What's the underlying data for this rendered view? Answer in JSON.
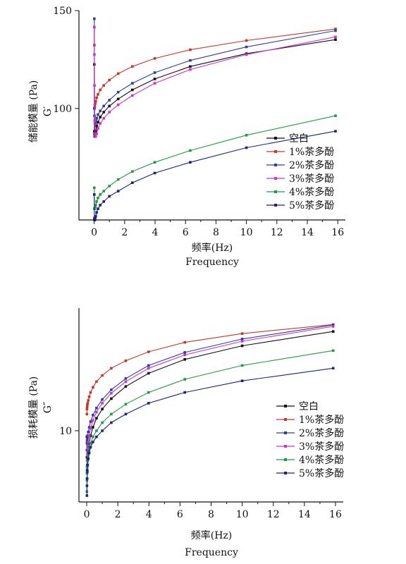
{
  "chart_data": [
    {
      "type": "line",
      "ylabel": "储能模量 (Pa)",
      "ysymbol": "G′",
      "xlabel_cn": "频率(Hz)",
      "xlabel_en": "Frequency",
      "xlim": [
        -1,
        16.5
      ],
      "ylim": [
        63,
        150
      ],
      "yscale": "log",
      "xticks": [
        0,
        2,
        4,
        6,
        8,
        10,
        12,
        14,
        16
      ],
      "yticks": [
        100,
        150
      ],
      "x": [
        0.01,
        0.016,
        0.025,
        0.04,
        0.063,
        0.1,
        0.16,
        0.25,
        0.4,
        0.63,
        1.0,
        1.58,
        2.51,
        3.98,
        6.31,
        10.0,
        15.85
      ],
      "series": [
        {
          "name": "空白",
          "color": "#111111",
          "values": [
            120,
            91,
            90,
            89,
            90,
            91,
            93,
            94.5,
            96.5,
            98.5,
            101,
            104,
            108,
            113,
            119,
            125.5,
            133
          ]
        },
        {
          "name": "1%茶多酚",
          "color": "#c0392b",
          "values": [
            140,
            130,
            100,
            101,
            102,
            103,
            104.5,
            106,
            108,
            110,
            112.5,
            115.5,
            119,
            123,
            127.5,
            132.5,
            139
          ]
        },
        {
          "name": "2%茶多酚",
          "color": "#2c3e9e",
          "values": [
            145,
            100,
            97,
            95,
            94,
            95,
            96,
            97.5,
            99,
            101,
            103.5,
            107,
            111,
            116,
            122,
            129,
            138
          ]
        },
        {
          "name": "3%茶多酚",
          "color": "#cc33cc",
          "values": [
            140,
            125,
            110,
            95,
            90,
            89,
            90,
            92,
            94,
            96,
            98.5,
            101.5,
            105.5,
            111,
            117.5,
            125,
            134.5
          ]
        },
        {
          "name": "4%茶多酚",
          "color": "#229944",
          "values": [
            72,
            66,
            66,
            66,
            66.5,
            67,
            68,
            69,
            70,
            71,
            72.5,
            74.5,
            77,
            80,
            84,
            89.5,
            97
          ]
        },
        {
          "name": "5%茶多酚",
          "color": "#1a237e",
          "values": [
            70,
            63.5,
            63,
            63,
            63.5,
            64,
            65,
            66,
            67,
            68,
            69.5,
            71,
            73.5,
            76.5,
            80,
            85,
            91
          ]
        }
      ],
      "legend_position": "bottom-right"
    },
    {
      "type": "line",
      "ylabel": "损耗模量 (Pa)",
      "ysymbol": "G″",
      "xlabel_cn": "频率(Hz)",
      "xlabel_en": "Frequency",
      "xlim": [
        -0.5,
        16.5
      ],
      "ylim": [
        5.5,
        28
      ],
      "yscale": "log",
      "xticks": [
        0,
        2,
        4,
        6,
        8,
        10,
        12,
        14,
        16
      ],
      "yticks": [
        10
      ],
      "x": [
        0.01,
        0.016,
        0.025,
        0.04,
        0.063,
        0.1,
        0.16,
        0.25,
        0.4,
        0.63,
        1.0,
        1.58,
        2.51,
        3.98,
        6.31,
        10.0,
        15.85
      ],
      "series": [
        {
          "name": "空白",
          "color": "#111111",
          "values": [
            9.5,
            8.0,
            7.2,
            7.5,
            8.0,
            8.5,
            9.0,
            9.6,
            10.3,
            11.1,
            12.0,
            13.1,
            14.5,
            16.2,
            18.2,
            20.4,
            23.0
          ]
        },
        {
          "name": "1%茶多酚",
          "color": "#c0392b",
          "values": [
            11.5,
            12.0,
            12.2,
            12.4,
            12.6,
            12.9,
            13.3,
            13.8,
            14.4,
            15.1,
            15.9,
            16.9,
            18.0,
            19.4,
            21.0,
            22.6,
            24.4
          ]
        },
        {
          "name": "2%茶多酚",
          "color": "#2c3e9e",
          "values": [
            8.5,
            9.0,
            9.2,
            9.4,
            9.6,
            9.9,
            10.3,
            10.8,
            11.4,
            12.1,
            13.0,
            14.1,
            15.5,
            17.3,
            19.3,
            21.6,
            24.3
          ]
        },
        {
          "name": "3%茶多酚",
          "color": "#cc33cc",
          "values": [
            7.0,
            7.4,
            7.8,
            8.2,
            8.6,
            9.1,
            9.6,
            10.2,
            10.9,
            11.7,
            12.6,
            13.7,
            15.1,
            16.9,
            18.9,
            21.2,
            24.0
          ]
        },
        {
          "name": "4%茶多酚",
          "color": "#229944",
          "values": [
            6.0,
            6.6,
            7.0,
            7.4,
            7.8,
            8.2,
            8.6,
            9.0,
            9.5,
            10.0,
            10.7,
            11.5,
            12.5,
            13.8,
            15.4,
            17.3,
            19.6
          ]
        },
        {
          "name": "5%茶多酚",
          "color": "#1a237e",
          "values": [
            5.8,
            6.3,
            6.7,
            7.1,
            7.5,
            7.9,
            8.3,
            8.7,
            9.1,
            9.5,
            10.0,
            10.7,
            11.5,
            12.6,
            13.8,
            15.2,
            16.9
          ]
        }
      ],
      "legend_position": "bottom-right"
    }
  ]
}
